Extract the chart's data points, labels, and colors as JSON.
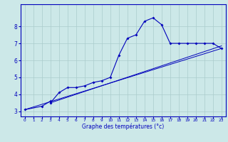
{
  "x": [
    0,
    2,
    3,
    3,
    4,
    5,
    6,
    7,
    8,
    9,
    10,
    11,
    12,
    13,
    14,
    15,
    16,
    17,
    18,
    19,
    20,
    21,
    22,
    23
  ],
  "y": [
    3.1,
    3.3,
    3.6,
    3.5,
    4.1,
    4.4,
    4.4,
    4.5,
    4.7,
    4.8,
    5.0,
    6.3,
    7.3,
    7.5,
    8.3,
    8.5,
    8.1,
    7.0,
    7.0,
    7.0,
    7.0,
    7.0,
    7.0,
    6.7
  ],
  "line_color": "#0000bb",
  "marker": "D",
  "marker_size": 2.0,
  "bg_color": "#cce8e8",
  "grid_color": "#aacccc",
  "axis_label": "Graphe des températures (°c)",
  "xlim": [
    -0.5,
    23.5
  ],
  "ylim": [
    2.7,
    9.3
  ],
  "yticks": [
    3,
    4,
    5,
    6,
    7,
    8
  ],
  "xticks": [
    0,
    1,
    2,
    3,
    4,
    5,
    6,
    7,
    8,
    9,
    10,
    11,
    12,
    13,
    14,
    15,
    16,
    17,
    18,
    19,
    20,
    21,
    22,
    23
  ],
  "reg_line1_x": [
    0,
    23
  ],
  "reg_line1_y": [
    3.1,
    6.7
  ],
  "reg_line2_x": [
    3,
    23
  ],
  "reg_line2_y": [
    3.5,
    6.85
  ]
}
